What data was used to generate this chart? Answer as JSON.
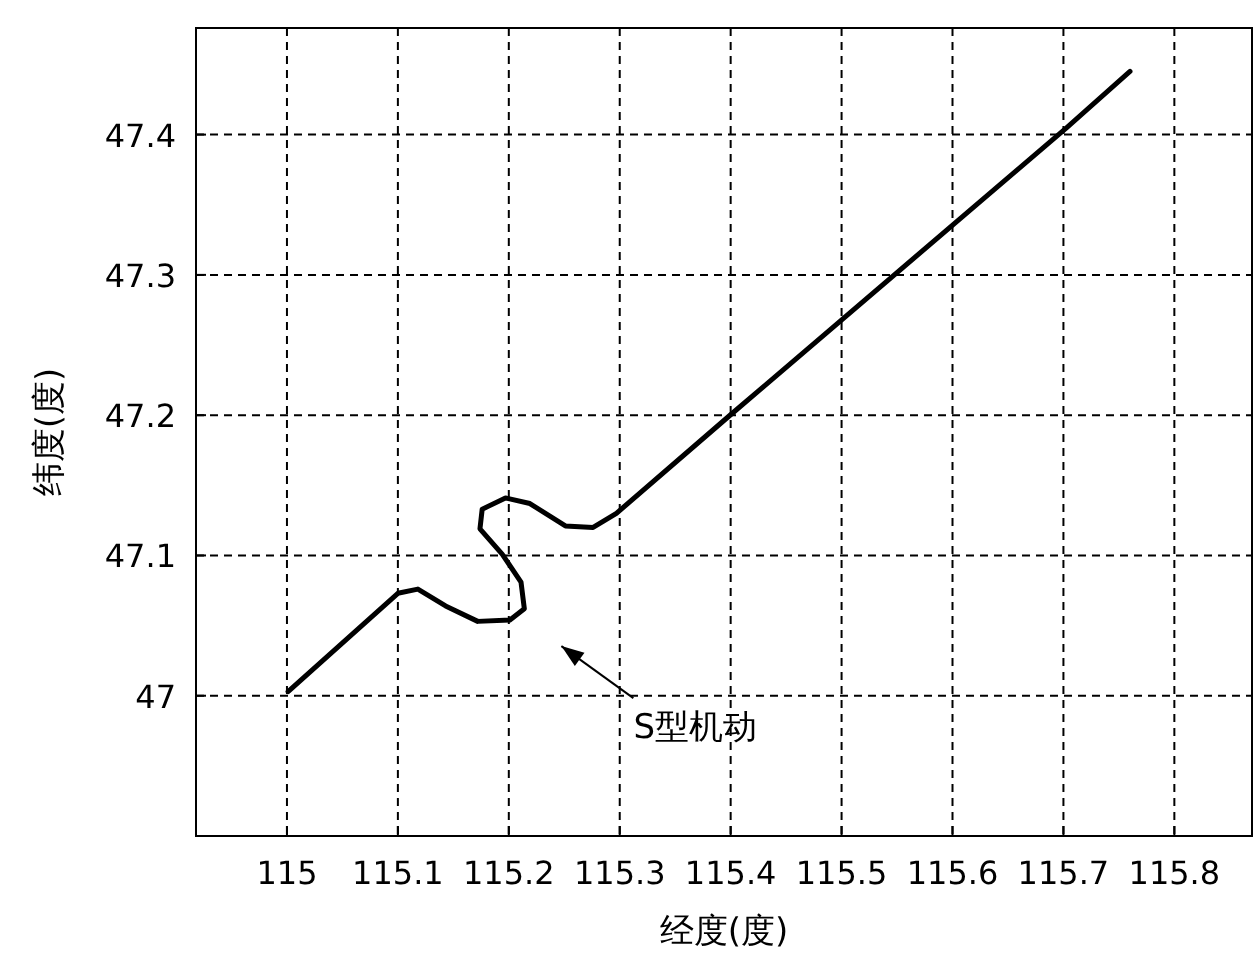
{
  "chart_data": {
    "type": "line",
    "xlabel": "经度(度)",
    "ylabel": "纬度(度)",
    "xlim": [
      114.918,
      115.87
    ],
    "ylim": [
      46.9,
      47.476
    ],
    "xticks": [
      115,
      115.1,
      115.2,
      115.3,
      115.4,
      115.5,
      115.6,
      115.7,
      115.8
    ],
    "yticks": [
      47,
      47.1,
      47.2,
      47.3,
      47.4
    ],
    "grid": true,
    "line_style": "solid",
    "marker": "none",
    "series": [
      {
        "color": "#000000",
        "x": [
          115.001,
          115.1,
          115.118,
          115.143,
          115.172,
          115.201,
          115.214,
          115.211,
          115.194,
          115.174,
          115.176,
          115.197,
          115.219,
          115.251,
          115.276,
          115.297,
          115.401,
          115.703,
          115.76
        ],
        "values": [
          47.003,
          47.073,
          47.076,
          47.064,
          47.053,
          47.054,
          47.062,
          47.081,
          47.101,
          47.119,
          47.133,
          47.141,
          47.137,
          47.121,
          47.12,
          47.13,
          47.201,
          47.405,
          47.445
        ]
      }
    ],
    "annotations": [
      "S型机动"
    ]
  }
}
